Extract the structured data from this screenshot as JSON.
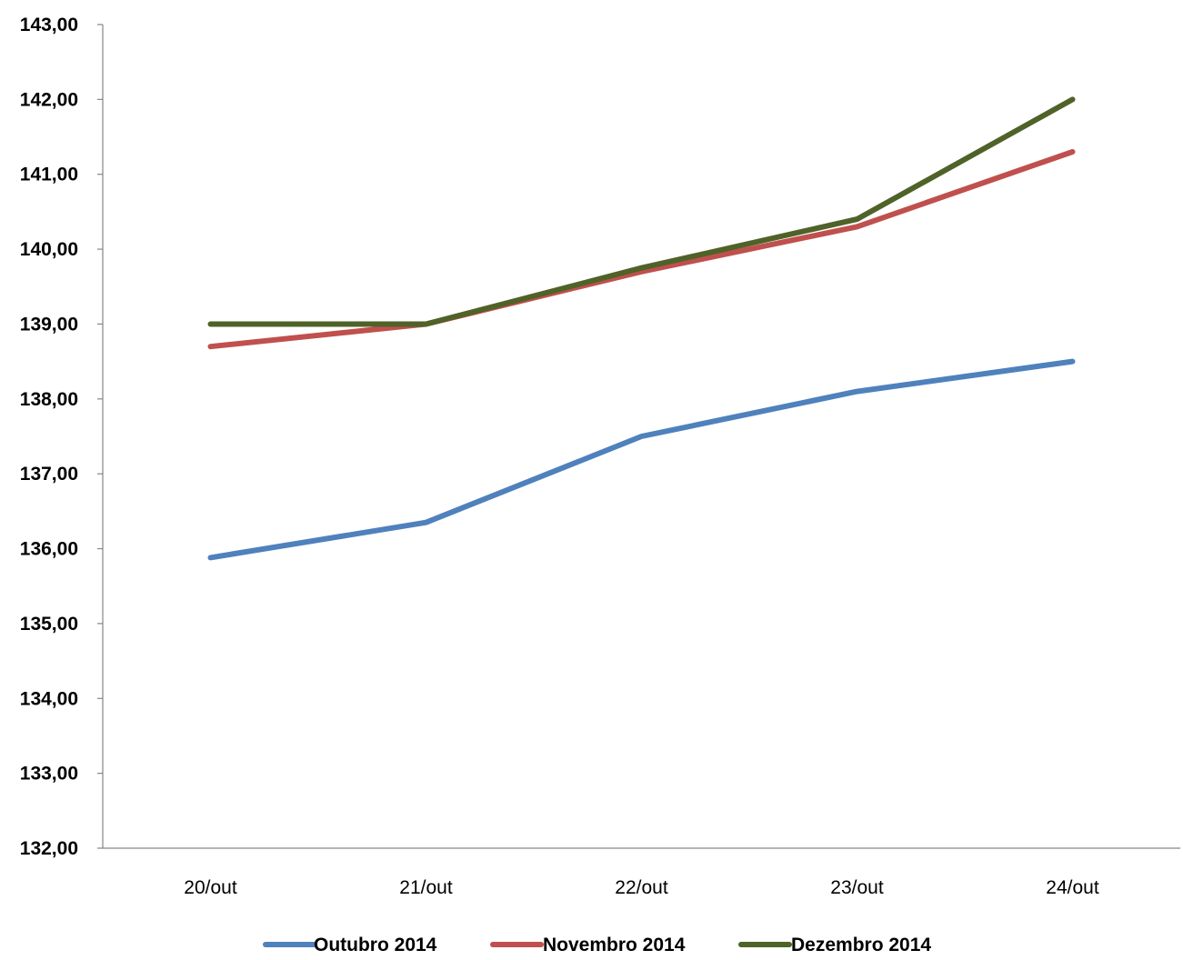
{
  "chart_data": {
    "type": "line",
    "title": "",
    "xlabel": "",
    "ylabel": "",
    "categories": [
      "20/out",
      "21/out",
      "22/out",
      "23/out",
      "24/out"
    ],
    "ylim": [
      132,
      143
    ],
    "y_ticks": [
      132,
      133,
      134,
      135,
      136,
      137,
      138,
      139,
      140,
      141,
      142,
      143
    ],
    "y_tick_labels": [
      "132,00",
      "133,00",
      "134,00",
      "135,00",
      "136,00",
      "137,00",
      "138,00",
      "139,00",
      "140,00",
      "141,00",
      "142,00",
      "143,00"
    ],
    "grid": false,
    "legend_position": "bottom",
    "series": [
      {
        "name": "Outubro 2014",
        "color": "#4F81BD",
        "values": [
          135.88,
          136.35,
          137.5,
          138.1,
          138.5
        ]
      },
      {
        "name": "Novembro 2014",
        "color": "#C0504D",
        "values": [
          138.7,
          139.0,
          139.7,
          140.3,
          141.3
        ]
      },
      {
        "name": "Dezembro 2014",
        "color": "#4F6228",
        "values": [
          139.0,
          139.0,
          139.75,
          140.4,
          142.0
        ]
      }
    ]
  }
}
